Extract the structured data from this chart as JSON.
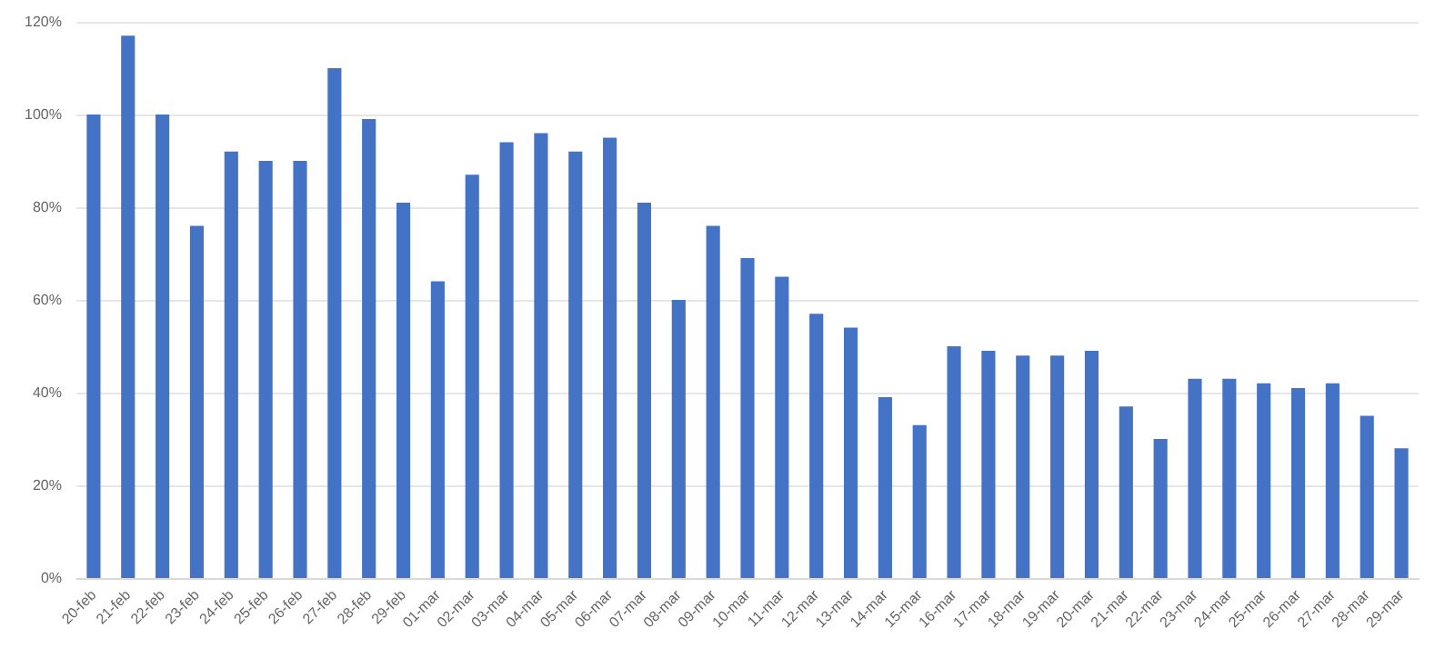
{
  "chart_data": {
    "type": "bar",
    "categories": [
      "20-feb",
      "21-feb",
      "22-feb",
      "23-feb",
      "24-feb",
      "25-feb",
      "26-feb",
      "27-feb",
      "28-feb",
      "29-feb",
      "01-mar",
      "02-mar",
      "03-mar",
      "04-mar",
      "05-mar",
      "06-mar",
      "07-mar",
      "08-mar",
      "09-mar",
      "10-mar",
      "11-mar",
      "12-mar",
      "13-mar",
      "14-mar",
      "15-mar",
      "16-mar",
      "17-mar",
      "18-mar",
      "19-mar",
      "20-mar",
      "21-mar",
      "22-mar",
      "23-mar",
      "24-mar",
      "25-mar",
      "26-mar",
      "27-mar",
      "28-mar",
      "29-mar"
    ],
    "values": [
      100,
      117,
      100,
      76,
      92,
      90,
      90,
      110,
      99,
      81,
      64,
      87,
      94,
      96,
      92,
      95,
      81,
      60,
      76,
      69,
      65,
      57,
      54,
      39,
      33,
      50,
      49,
      48,
      48,
      49,
      37,
      30,
      43,
      43,
      42,
      41,
      42,
      35,
      28
    ],
    "color": "#4472c4",
    "ylim": [
      0,
      120
    ],
    "yticks": [
      {
        "value": 0,
        "label": "0%"
      },
      {
        "value": 20,
        "label": "20%"
      },
      {
        "value": 40,
        "label": "40%"
      },
      {
        "value": 60,
        "label": "60%"
      },
      {
        "value": 80,
        "label": "80%"
      },
      {
        "value": 100,
        "label": "100%"
      },
      {
        "value": 120,
        "label": "120%"
      }
    ],
    "grid": "y"
  }
}
